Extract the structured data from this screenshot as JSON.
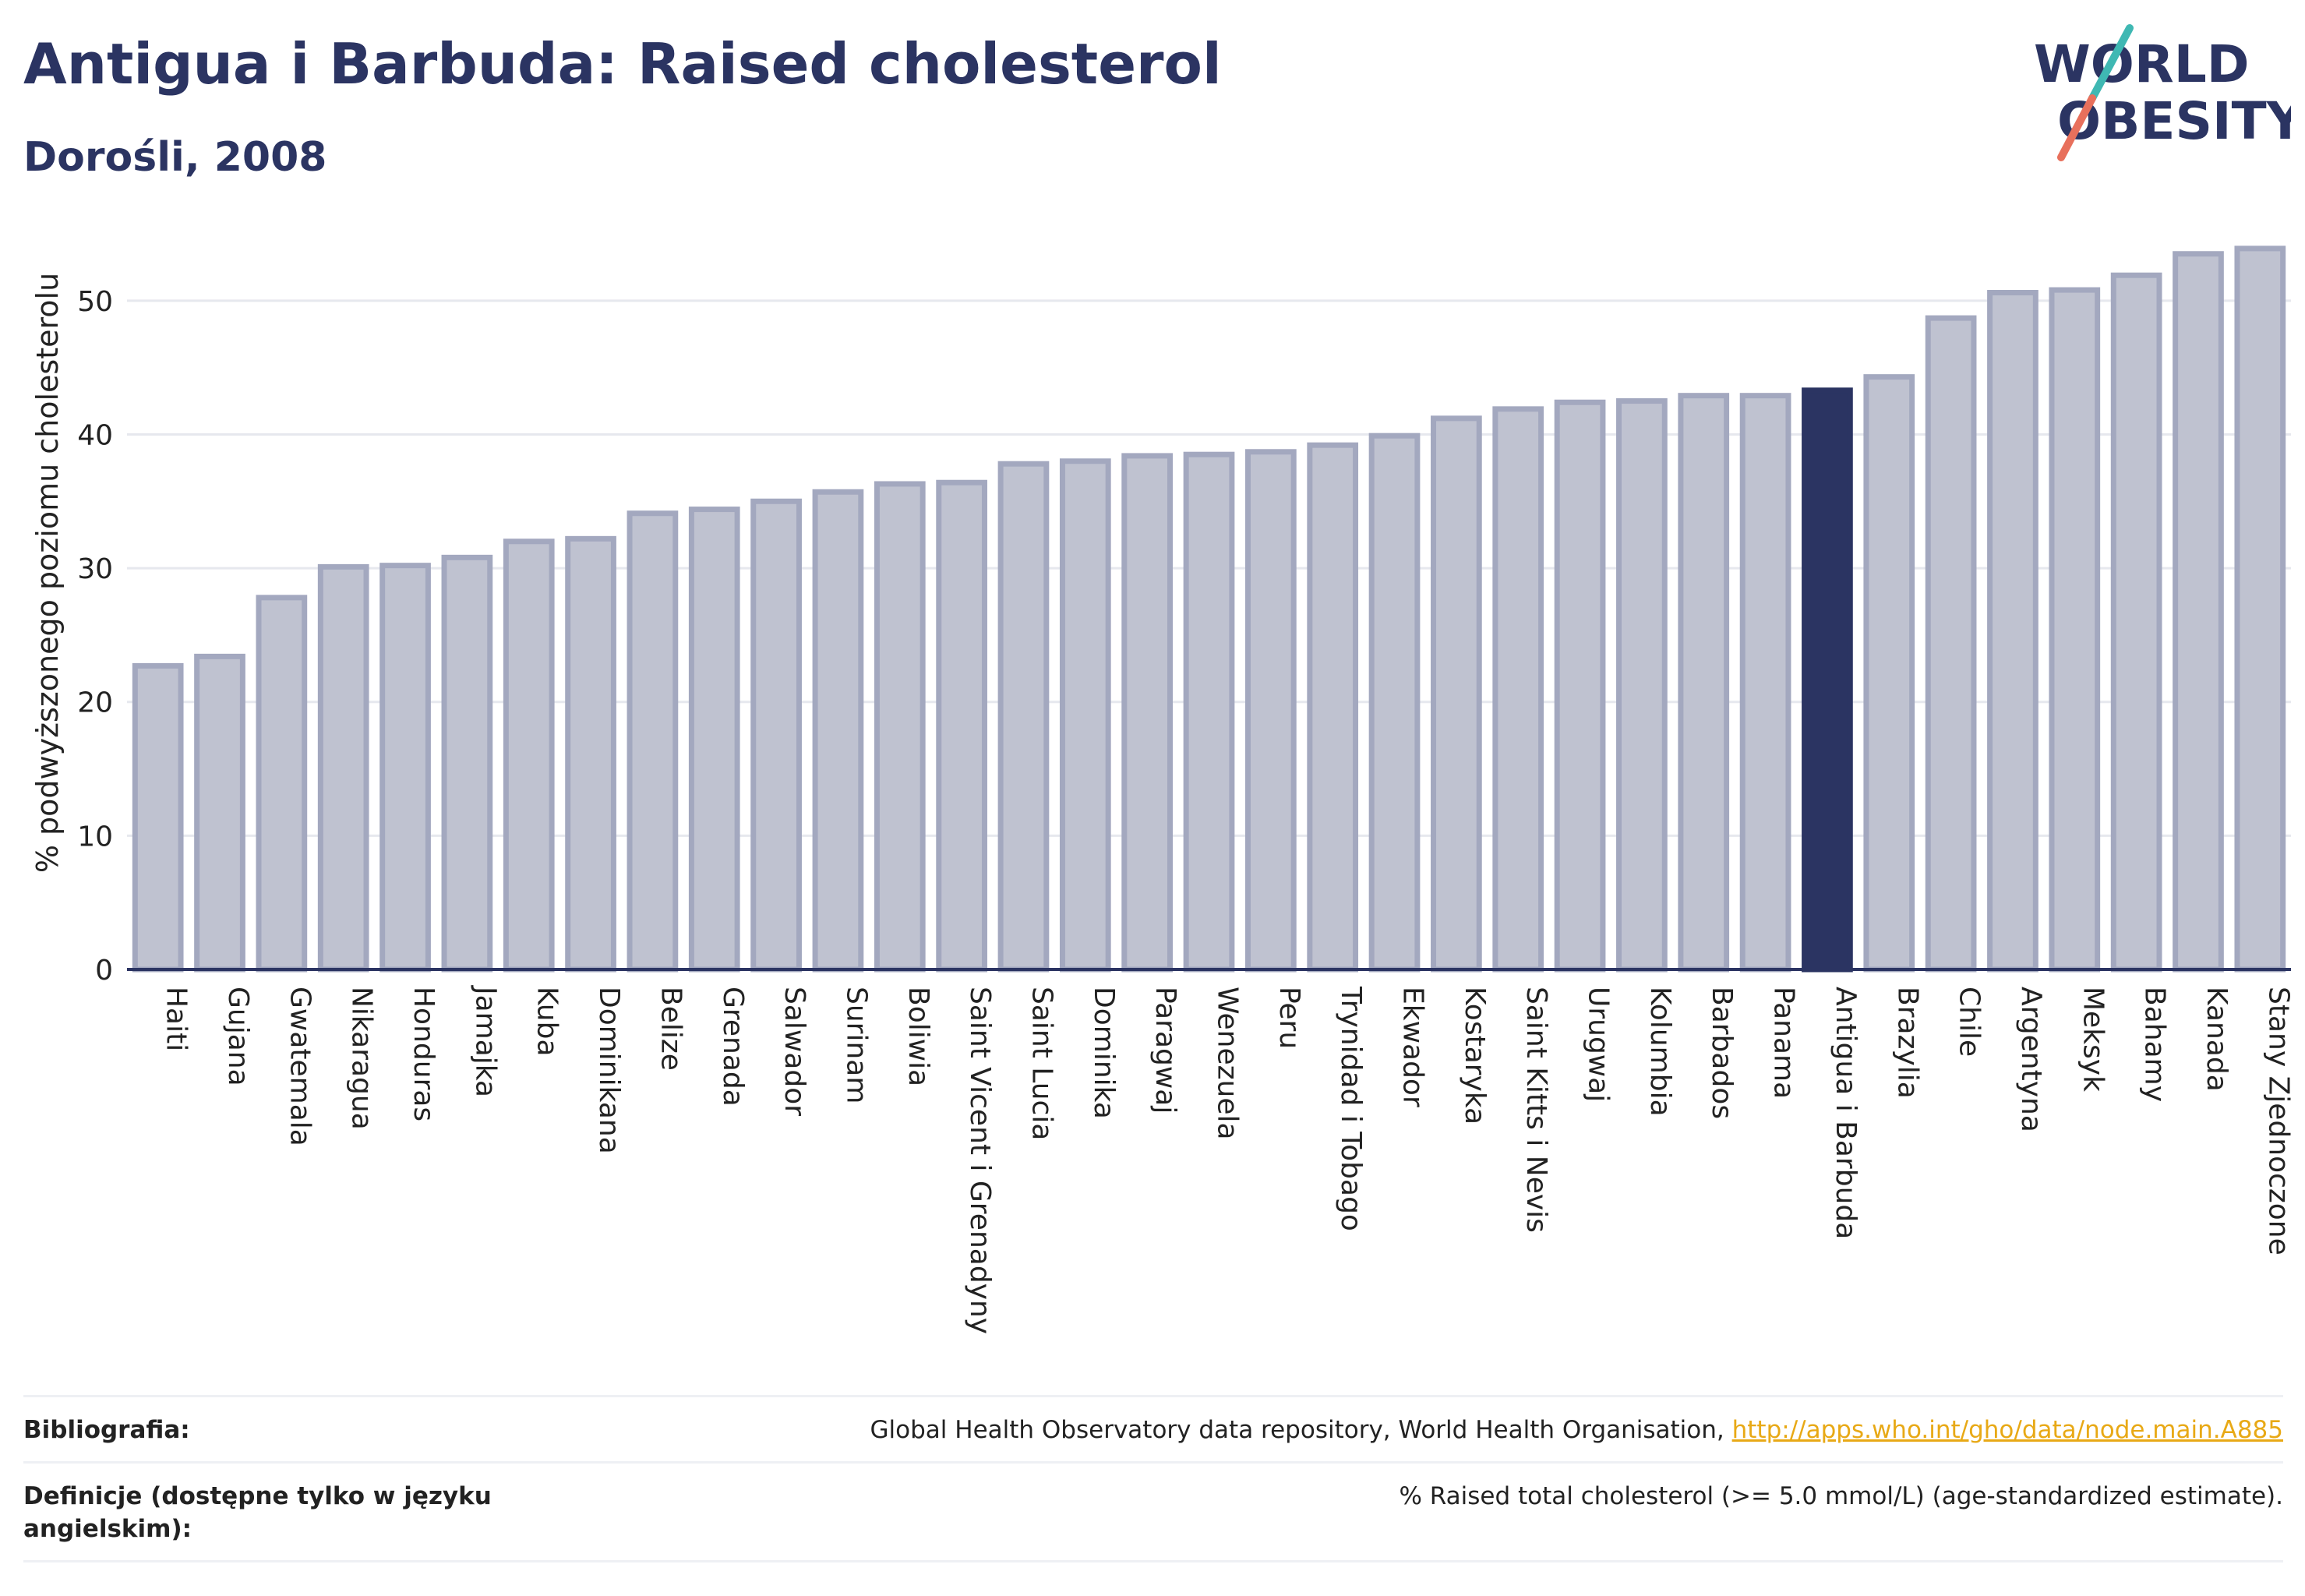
{
  "header": {
    "title": "Antigua i Barbuda: Raised cholesterol",
    "subtitle": "Dorośli, 2008"
  },
  "logo": {
    "line1": "WORLD",
    "line2": "OBESITY"
  },
  "colors": {
    "highlight": "#2b3462",
    "bar_fill": "#bfc2d0",
    "bar_stroke": "#a3a8bf",
    "grid": "#e6e8ee",
    "axis": "#2b3462",
    "logo_slash_teal": "#3fb8b3",
    "logo_slash_red": "#e8705c",
    "link": "#e8a916"
  },
  "chart_data": {
    "type": "bar",
    "ylabel": "% podwyższonego poziomu cholesterolu",
    "ylim": [
      0,
      55
    ],
    "yticks": [
      0,
      10,
      20,
      30,
      40,
      50
    ],
    "grid": true,
    "highlight": "Antigua i Barbuda",
    "categories": [
      "Haiti",
      "Gujana",
      "Gwatemala",
      "Nikaragua",
      "Honduras",
      "Jamajka",
      "Kuba",
      "Dominikana",
      "Belize",
      "Grenada",
      "Salwador",
      "Surinam",
      "Boliwia",
      "Saint Vicent i Grenadyny",
      "Saint Lucia",
      "Dominika",
      "Paragwaj",
      "Wenezuela",
      "Peru",
      "Trynidad i Tobago",
      "Ekwador",
      "Kostaryka",
      "Saint Kitts i Nevis",
      "Urugwaj",
      "Kolumbia",
      "Barbados",
      "Panama",
      "Antigua i Barbuda",
      "Brazylia",
      "Chile",
      "Argentyna",
      "Meksyk",
      "Bahamy",
      "Kanada",
      "Stany Zjednoczone"
    ],
    "values": [
      22.7,
      23.4,
      27.8,
      30.1,
      30.2,
      30.8,
      32.0,
      32.2,
      34.1,
      34.4,
      35.0,
      35.7,
      36.3,
      36.4,
      37.8,
      38.0,
      38.4,
      38.5,
      38.7,
      39.2,
      39.9,
      41.2,
      41.9,
      42.4,
      42.5,
      42.9,
      42.9,
      43.3,
      44.3,
      48.7,
      50.6,
      50.8,
      51.9,
      53.5,
      53.9
    ]
  },
  "footer": {
    "bibliography_label": "Bibliografia:",
    "bibliography_text": "Global Health Observatory data repository, World Health Organisation, ",
    "bibliography_link": "http://apps.who.int/gho/data/node.main.A885",
    "definitions_label": "Definicje (dostępne tylko w języku angielskim):",
    "definitions_text": "% Raised total cholesterol (>= 5.0 mmol/L) (age-standardized estimate)."
  }
}
